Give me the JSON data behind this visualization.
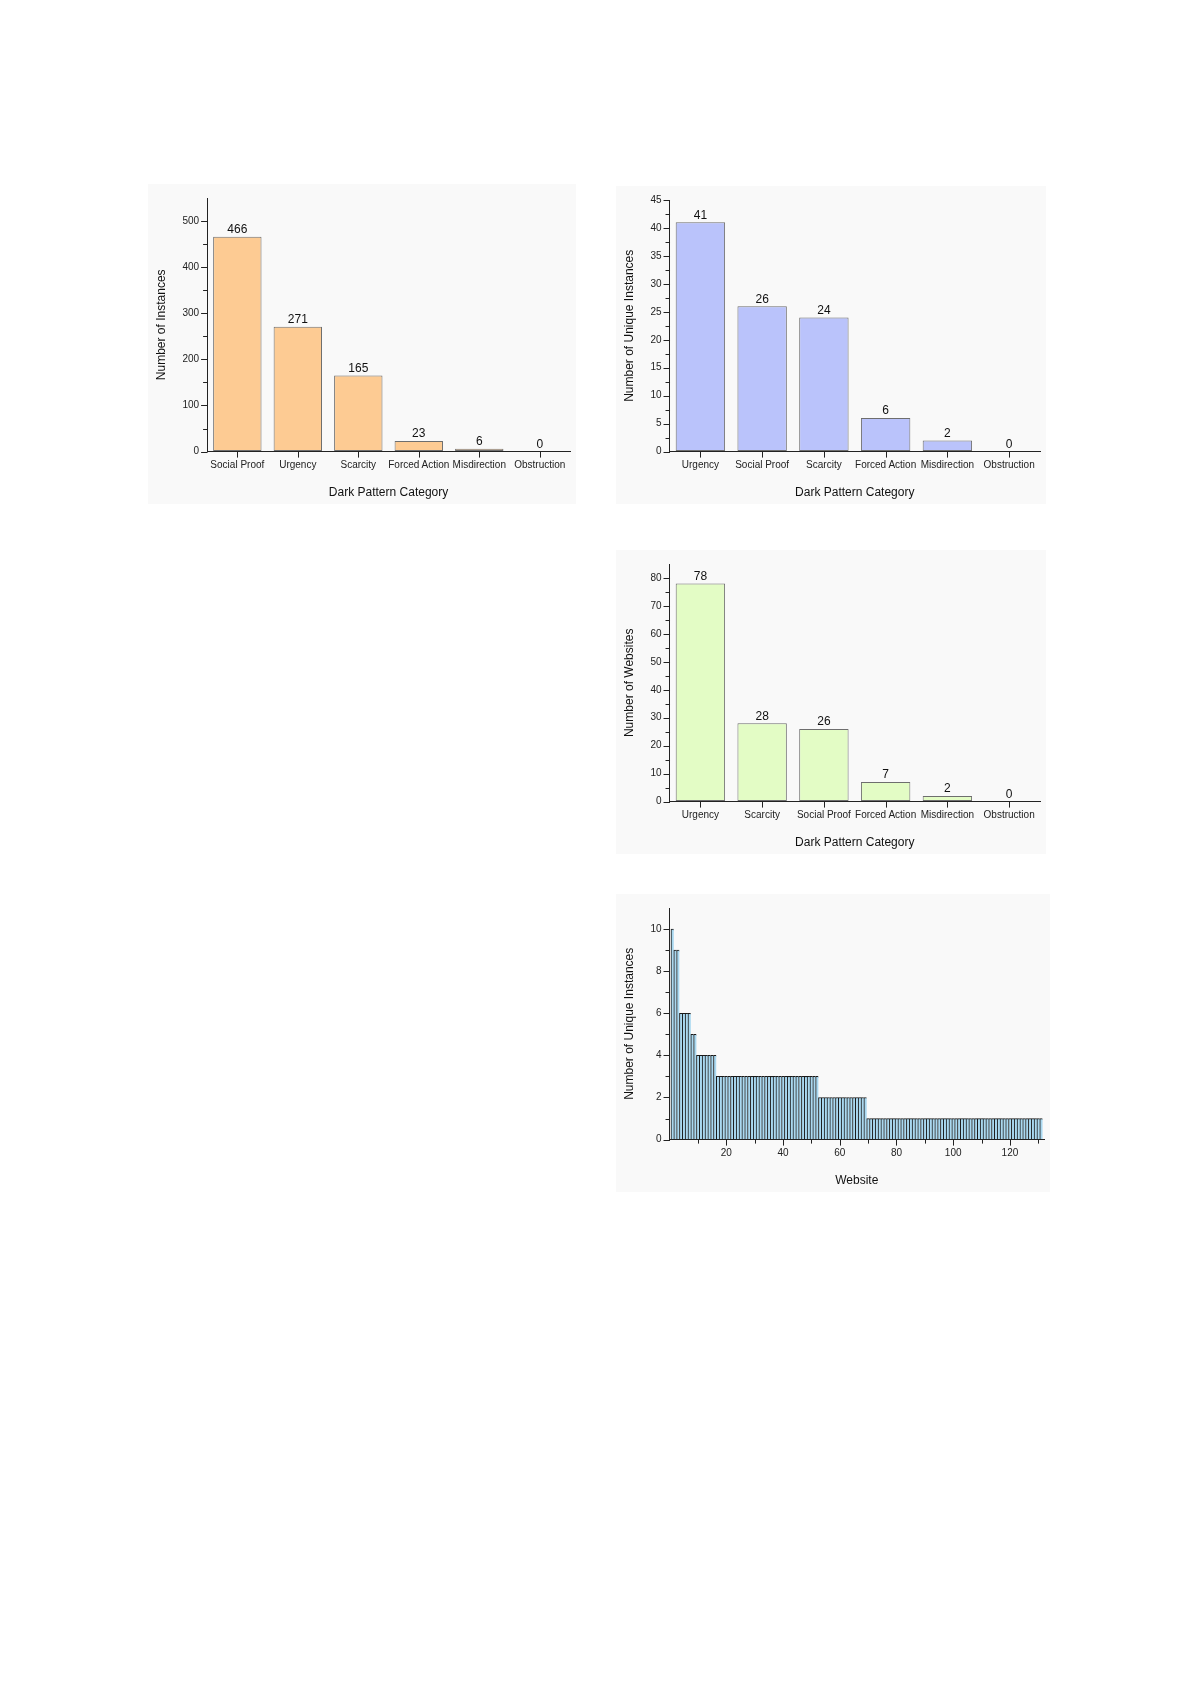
{
  "chart_data": [
    {
      "type": "bar",
      "xlabel": "Dark Pattern Category",
      "ylabel": "Number of Instances",
      "categories": [
        "Social Proof",
        "Urgency",
        "Scarcity",
        "Forced Action",
        "Misdirection",
        "Obstruction"
      ],
      "values": [
        466,
        271,
        165,
        23,
        6,
        0
      ],
      "color": "#fdcb93",
      "ylim": [
        0,
        550
      ],
      "yticks": [
        0,
        {
          "value": 50,
          "label": null
        },
        100,
        {
          "value": 150,
          "label": null
        },
        200,
        {
          "value": 250,
          "label": null
        },
        300,
        {
          "value": 350,
          "label": null
        },
        400,
        {
          "value": 450,
          "label": null
        },
        500
      ],
      "data_labels": true
    },
    {
      "type": "bar",
      "xlabel": "Dark Pattern Category",
      "ylabel": "Number of Unique Instances",
      "categories": [
        "Urgency",
        "Social Proof",
        "Scarcity",
        "Forced Action",
        "Misdirection",
        "Obstruction"
      ],
      "values": [
        41,
        26,
        24,
        6,
        2,
        0
      ],
      "color": "#bac3fb",
      "ylim": [
        0,
        45
      ],
      "yticks": [
        0,
        {
          "value": 2.5,
          "label": null
        },
        5,
        {
          "value": 7.5,
          "label": null
        },
        10,
        {
          "value": 12.5,
          "label": null
        },
        15,
        {
          "value": 17.5,
          "label": null
        },
        20,
        {
          "value": 22.5,
          "label": null
        },
        25,
        {
          "value": 27.5,
          "label": null
        },
        30,
        {
          "value": 32.5,
          "label": null
        },
        35,
        {
          "value": 37.5,
          "label": null
        },
        40,
        {
          "value": 42.5,
          "label": null
        },
        45
      ],
      "data_labels": true
    },
    {
      "type": "bar",
      "xlabel": "Dark Pattern Category",
      "ylabel": "Number of Websites",
      "categories": [
        "Urgency",
        "Scarcity",
        "Social Proof",
        "Forced Action",
        "Misdirection",
        "Obstruction"
      ],
      "values": [
        78,
        28,
        26,
        7,
        2,
        0
      ],
      "color": "#e3fcc5",
      "ylim": [
        0,
        85
      ],
      "yticks": [
        0,
        {
          "value": 5,
          "label": null
        },
        10,
        {
          "value": 15,
          "label": null
        },
        20,
        {
          "value": 25,
          "label": null
        },
        30,
        {
          "value": 35,
          "label": null
        },
        40,
        {
          "value": 45,
          "label": null
        },
        50,
        {
          "value": 55,
          "label": null
        },
        60,
        {
          "value": 65,
          "label": null
        },
        70,
        {
          "value": 75,
          "label": null
        },
        80
      ],
      "data_labels": true
    },
    {
      "type": "bar",
      "xlabel": "Website",
      "ylabel": "Number of Unique Instances",
      "x": [
        1,
        2,
        3,
        4,
        5,
        6,
        7,
        8,
        9,
        10,
        11,
        12,
        13,
        14,
        15,
        16,
        17,
        18,
        19,
        20,
        21,
        22,
        23,
        24,
        25,
        26,
        27,
        28,
        29,
        30,
        31,
        32,
        33,
        34,
        35,
        36,
        37,
        38,
        39,
        40,
        41,
        42,
        43,
        44,
        45,
        46,
        47,
        48,
        49,
        50,
        51,
        52,
        53,
        54,
        55,
        56,
        57,
        58,
        59,
        60,
        61,
        62,
        63,
        64,
        65,
        66,
        67,
        68,
        69,
        70,
        71,
        72,
        73,
        74,
        75,
        76,
        77,
        78,
        79,
        80,
        81,
        82,
        83,
        84,
        85,
        86,
        87,
        88,
        89,
        90,
        91,
        92,
        93,
        94,
        95,
        96,
        97,
        98,
        99,
        100,
        101,
        102,
        103,
        104,
        105,
        106,
        107,
        108,
        109,
        110,
        111,
        112,
        113,
        114,
        115,
        116,
        117,
        118,
        119,
        120,
        121,
        122,
        123,
        124,
        125,
        126,
        127,
        128,
        129,
        130,
        131
      ],
      "values": [
        10,
        9,
        9,
        6,
        6,
        6,
        6,
        5,
        5,
        4,
        4,
        4,
        4,
        4,
        4,
        4,
        3,
        3,
        3,
        3,
        3,
        3,
        3,
        3,
        3,
        3,
        3,
        3,
        3,
        3,
        3,
        3,
        3,
        3,
        3,
        3,
        3,
        3,
        3,
        3,
        3,
        3,
        3,
        3,
        3,
        3,
        3,
        3,
        3,
        3,
        3,
        3,
        2,
        2,
        2,
        2,
        2,
        2,
        2,
        2,
        2,
        2,
        2,
        2,
        2,
        2,
        2,
        2,
        2,
        1,
        1,
        1,
        1,
        1,
        1,
        1,
        1,
        1,
        1,
        1,
        1,
        1,
        1,
        1,
        1,
        1,
        1,
        1,
        1,
        1,
        1,
        1,
        1,
        1,
        1,
        1,
        1,
        1,
        1,
        1,
        1,
        1,
        1,
        1,
        1,
        1,
        1,
        1,
        1,
        1,
        1,
        1,
        1,
        1,
        1,
        1,
        1,
        1,
        1,
        1,
        1,
        1,
        1,
        1,
        1,
        1,
        1,
        1,
        1,
        1,
        1
      ],
      "color": "#a9d8f0",
      "xlim": [
        0,
        132
      ],
      "xticks": [
        {
          "value": 10,
          "label": null
        },
        20,
        {
          "value": 30,
          "label": null
        },
        40,
        {
          "value": 50,
          "label": null
        },
        60,
        {
          "value": 70,
          "label": null
        },
        80,
        {
          "value": 90,
          "label": null
        },
        100,
        {
          "value": 110,
          "label": null
        },
        120,
        {
          "value": 130,
          "label": null
        }
      ],
      "ylim": [
        0,
        11
      ],
      "yticks": [
        0,
        {
          "value": 1,
          "label": null
        },
        2,
        {
          "value": 3,
          "label": null
        },
        4,
        {
          "value": 5,
          "label": null
        },
        6,
        {
          "value": 7,
          "label": null
        },
        8,
        {
          "value": 9,
          "label": null
        },
        10
      ]
    }
  ]
}
